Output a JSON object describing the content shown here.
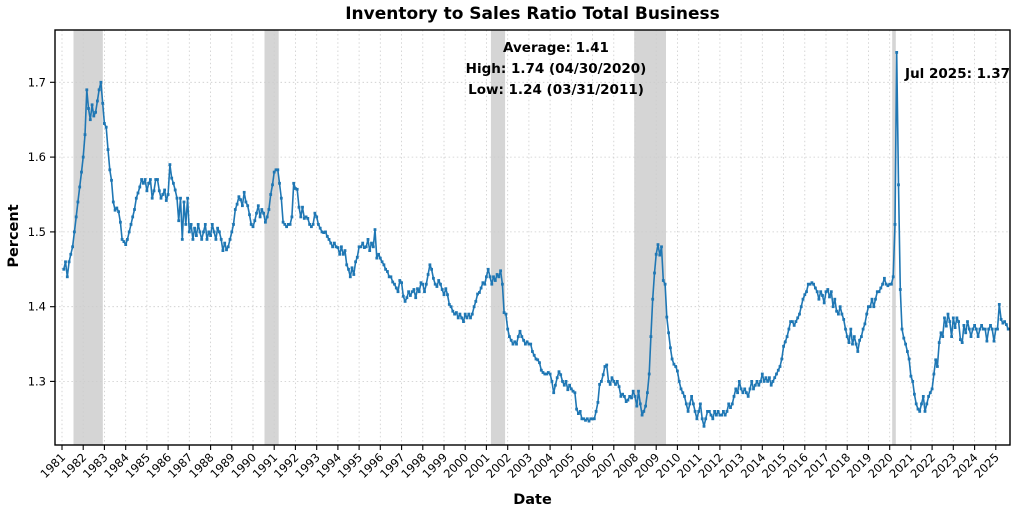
{
  "title": "Inventory to Sales Ratio Total Business",
  "annotations": {
    "summary_line1": "Average: 1.41",
    "summary_line2": "High: 1.74 (04/30/2020)",
    "summary_line3": "Low: 1.24 (03/31/2011)",
    "last_point_label": "Jul 2025: 1.37"
  },
  "chart_data": {
    "type": "line",
    "title": "Inventory to Sales Ratio Total Business",
    "xlabel": "Date",
    "ylabel": "Percent",
    "frequency": "monthly",
    "x_start_year": 1981,
    "x_start_month": 1,
    "x_end_label": "Jul 2025",
    "x_tick_years": [
      1981,
      1982,
      1983,
      1984,
      1985,
      1986,
      1987,
      1988,
      1989,
      1990,
      1991,
      1992,
      1993,
      1994,
      1995,
      1996,
      1997,
      1998,
      1999,
      2000,
      2001,
      2002,
      2003,
      2004,
      2005,
      2006,
      2007,
      2008,
      2009,
      2010,
      2011,
      2012,
      2013,
      2014,
      2015,
      2016,
      2017,
      2018,
      2019,
      2020,
      2021,
      2022,
      2023,
      2024,
      2025
    ],
    "y_ticks": [
      1.3,
      1.4,
      1.5,
      1.6,
      1.7
    ],
    "ylim": [
      1.215,
      1.77
    ],
    "xlim_years": [
      1980.67,
      2025.67
    ],
    "grid": true,
    "legend": "none",
    "band_color": "#d5d5d5",
    "grid_color": "#cccccc",
    "recession_bands": [
      [
        1981.54,
        1982.92
      ],
      [
        1990.54,
        1991.21
      ],
      [
        2001.21,
        2001.88
      ],
      [
        2007.96,
        2009.46
      ],
      [
        2020.12,
        2020.29
      ]
    ],
    "stats": {
      "average": 1.41,
      "high": 1.74,
      "high_date": "04/30/2020",
      "low": 1.24,
      "low_date": "03/31/2011",
      "last": 1.37,
      "last_date": "Jul 2025"
    },
    "series": [
      {
        "name": "Inventory to Sales Ratio Total Business",
        "color": "#1f77b4",
        "values": [
          1.45,
          1.46,
          1.44,
          1.46,
          1.47,
          1.48,
          1.5,
          1.52,
          1.54,
          1.56,
          1.58,
          1.6,
          1.63,
          1.69,
          1.665,
          1.65,
          1.67,
          1.655,
          1.66,
          1.675,
          1.69,
          1.7,
          1.672,
          1.645,
          1.64,
          1.61,
          1.583,
          1.569,
          1.54,
          1.529,
          1.532,
          1.527,
          1.513,
          1.49,
          1.487,
          1.483,
          1.49,
          1.5,
          1.51,
          1.52,
          1.53,
          1.545,
          1.552,
          1.56,
          1.57,
          1.565,
          1.57,
          1.555,
          1.565,
          1.57,
          1.545,
          1.555,
          1.57,
          1.57,
          1.555,
          1.545,
          1.55,
          1.556,
          1.542,
          1.55,
          1.59,
          1.572,
          1.565,
          1.556,
          1.545,
          1.515,
          1.545,
          1.49,
          1.54,
          1.51,
          1.545,
          1.5,
          1.51,
          1.49,
          1.505,
          1.495,
          1.51,
          1.5,
          1.49,
          1.5,
          1.51,
          1.49,
          1.5,
          1.495,
          1.51,
          1.5,
          1.49,
          1.505,
          1.5,
          1.49,
          1.475,
          1.485,
          1.476,
          1.48,
          1.49,
          1.5,
          1.51,
          1.53,
          1.537,
          1.547,
          1.543,
          1.535,
          1.553,
          1.54,
          1.535,
          1.523,
          1.51,
          1.507,
          1.515,
          1.525,
          1.535,
          1.52,
          1.53,
          1.525,
          1.513,
          1.52,
          1.53,
          1.55,
          1.563,
          1.58,
          1.583,
          1.583,
          1.565,
          1.545,
          1.513,
          1.51,
          1.507,
          1.51,
          1.51,
          1.52,
          1.565,
          1.558,
          1.557,
          1.533,
          1.52,
          1.533,
          1.518,
          1.52,
          1.518,
          1.51,
          1.507,
          1.51,
          1.525,
          1.52,
          1.51,
          1.505,
          1.5,
          1.499,
          1.5,
          1.494,
          1.49,
          1.485,
          1.48,
          1.485,
          1.48,
          1.479,
          1.47,
          1.48,
          1.47,
          1.475,
          1.456,
          1.45,
          1.44,
          1.452,
          1.443,
          1.46,
          1.466,
          1.48,
          1.48,
          1.485,
          1.479,
          1.48,
          1.49,
          1.475,
          1.485,
          1.48,
          1.503,
          1.465,
          1.47,
          1.465,
          1.46,
          1.456,
          1.45,
          1.447,
          1.44,
          1.44,
          1.433,
          1.43,
          1.425,
          1.42,
          1.435,
          1.432,
          1.414,
          1.407,
          1.412,
          1.42,
          1.415,
          1.42,
          1.423,
          1.412,
          1.424,
          1.42,
          1.432,
          1.43,
          1.42,
          1.43,
          1.443,
          1.456,
          1.45,
          1.438,
          1.43,
          1.427,
          1.435,
          1.43,
          1.423,
          1.416,
          1.424,
          1.416,
          1.403,
          1.4,
          1.394,
          1.39,
          1.392,
          1.385,
          1.39,
          1.385,
          1.38,
          1.39,
          1.385,
          1.39,
          1.385,
          1.39,
          1.4,
          1.407,
          1.417,
          1.419,
          1.425,
          1.432,
          1.43,
          1.44,
          1.45,
          1.44,
          1.43,
          1.44,
          1.435,
          1.443,
          1.44,
          1.448,
          1.43,
          1.392,
          1.39,
          1.37,
          1.36,
          1.355,
          1.35,
          1.353,
          1.35,
          1.36,
          1.367,
          1.36,
          1.355,
          1.35,
          1.353,
          1.35,
          1.35,
          1.34,
          1.335,
          1.33,
          1.329,
          1.325,
          1.315,
          1.312,
          1.31,
          1.31,
          1.312,
          1.31,
          1.3,
          1.285,
          1.295,
          1.305,
          1.313,
          1.309,
          1.3,
          1.295,
          1.3,
          1.289,
          1.295,
          1.29,
          1.287,
          1.285,
          1.263,
          1.257,
          1.26,
          1.25,
          1.25,
          1.248,
          1.25,
          1.247,
          1.25,
          1.25,
          1.25,
          1.26,
          1.272,
          1.296,
          1.3,
          1.309,
          1.32,
          1.322,
          1.3,
          1.296,
          1.305,
          1.3,
          1.296,
          1.3,
          1.293,
          1.28,
          1.283,
          1.28,
          1.273,
          1.275,
          1.28,
          1.278,
          1.287,
          1.28,
          1.267,
          1.287,
          1.27,
          1.255,
          1.26,
          1.267,
          1.285,
          1.31,
          1.36,
          1.41,
          1.445,
          1.47,
          1.483,
          1.469,
          1.48,
          1.435,
          1.43,
          1.386,
          1.365,
          1.345,
          1.33,
          1.323,
          1.32,
          1.314,
          1.3,
          1.29,
          1.285,
          1.28,
          1.27,
          1.26,
          1.27,
          1.28,
          1.27,
          1.26,
          1.25,
          1.26,
          1.27,
          1.25,
          1.24,
          1.25,
          1.26,
          1.26,
          1.255,
          1.25,
          1.26,
          1.255,
          1.26,
          1.255,
          1.255,
          1.26,
          1.255,
          1.26,
          1.27,
          1.265,
          1.27,
          1.28,
          1.29,
          1.285,
          1.3,
          1.29,
          1.285,
          1.29,
          1.285,
          1.28,
          1.29,
          1.3,
          1.29,
          1.295,
          1.3,
          1.295,
          1.3,
          1.31,
          1.3,
          1.305,
          1.3,
          1.305,
          1.295,
          1.3,
          1.305,
          1.31,
          1.315,
          1.32,
          1.33,
          1.347,
          1.353,
          1.36,
          1.37,
          1.38,
          1.38,
          1.375,
          1.38,
          1.385,
          1.39,
          1.4,
          1.41,
          1.416,
          1.42,
          1.43,
          1.43,
          1.432,
          1.43,
          1.425,
          1.42,
          1.41,
          1.42,
          1.415,
          1.405,
          1.42,
          1.423,
          1.413,
          1.42,
          1.4,
          1.41,
          1.394,
          1.39,
          1.4,
          1.39,
          1.383,
          1.37,
          1.36,
          1.352,
          1.37,
          1.35,
          1.36,
          1.35,
          1.34,
          1.355,
          1.36,
          1.37,
          1.377,
          1.39,
          1.4,
          1.4,
          1.41,
          1.4,
          1.41,
          1.42,
          1.42,
          1.425,
          1.43,
          1.438,
          1.43,
          1.428,
          1.43,
          1.43,
          1.44,
          1.51,
          1.74,
          1.563,
          1.423,
          1.37,
          1.358,
          1.35,
          1.34,
          1.33,
          1.307,
          1.3,
          1.283,
          1.27,
          1.263,
          1.26,
          1.27,
          1.28,
          1.26,
          1.27,
          1.28,
          1.285,
          1.29,
          1.31,
          1.329,
          1.32,
          1.352,
          1.365,
          1.36,
          1.385,
          1.374,
          1.39,
          1.38,
          1.36,
          1.385,
          1.372,
          1.385,
          1.38,
          1.356,
          1.352,
          1.375,
          1.365,
          1.38,
          1.37,
          1.36,
          1.37,
          1.375,
          1.37,
          1.36,
          1.37,
          1.375,
          1.37,
          1.37,
          1.354,
          1.37,
          1.375,
          1.37,
          1.354,
          1.37,
          1.37,
          1.403,
          1.383,
          1.378,
          1.38,
          1.376,
          1.37
        ]
      }
    ]
  }
}
